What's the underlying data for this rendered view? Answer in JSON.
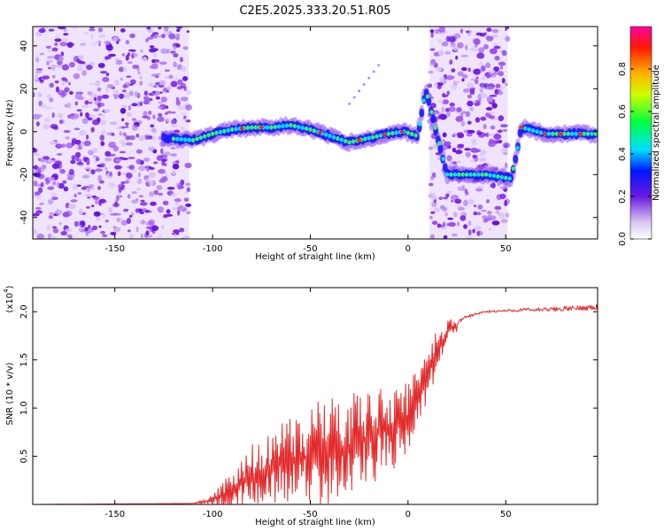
{
  "chart_data": [
    {
      "type": "heatmap",
      "title": "C2E5.2025.333.20.51.R05",
      "xlabel": "Height of straight line (km)",
      "ylabel": "Frequency (Hz)",
      "xlim": [
        -192,
        97
      ],
      "ylim": [
        -50,
        49
      ],
      "xticks": [
        "-150",
        "-100",
        "-50",
        "0",
        "50"
      ],
      "yticks": [
        "40",
        "20",
        "0",
        "-20",
        "-40"
      ],
      "colorbar": {
        "label": "Normalized spectral amplitude",
        "range": [
          0,
          1
        ],
        "ticks": [
          "0.0",
          "0.2",
          "0.4",
          "0.6",
          "0.8"
        ]
      },
      "noise_regions_km": [
        [
          -192,
          -112
        ],
        [
          11,
          51
        ]
      ],
      "spectral_ridge": {
        "height_km": [
          -125,
          -110,
          -100,
          -90,
          -80,
          -70,
          -60,
          -50,
          -40,
          -30,
          -20,
          -10,
          -2,
          5,
          9,
          20,
          40,
          53,
          58,
          70,
          85,
          97
        ],
        "frequency_hz": [
          -3,
          -4,
          -1,
          1,
          2,
          2,
          3,
          1,
          -2,
          -5,
          -3,
          -1,
          0,
          -2,
          20,
          -20,
          -20,
          -22,
          2,
          -1,
          -1,
          -1
        ]
      }
    },
    {
      "type": "line",
      "xlabel": "Height of straight line (km)",
      "ylabel": "SNR (10 * v/v)",
      "exponent_label": "(x10",
      "exponent_power": "4",
      "xlim": [
        -192,
        97
      ],
      "ylim": [
        0,
        2.25
      ],
      "xticks": [
        "-150",
        "-100",
        "-50",
        "0",
        "50"
      ],
      "yticks": [
        "0.5",
        "1.0",
        "1.5",
        "2.0"
      ],
      "series": [
        {
          "name": "SNR",
          "color": "#e32b2b",
          "x": [
            -192,
            -110,
            -100,
            -90,
            -80,
            -70,
            -60,
            -50,
            -40,
            -30,
            -20,
            -10,
            0,
            10,
            20,
            30,
            40,
            50,
            60,
            70,
            80,
            90,
            97
          ],
          "y": [
            0.0,
            0.01,
            0.05,
            0.15,
            0.3,
            0.4,
            0.45,
            0.5,
            0.55,
            0.6,
            0.7,
            0.8,
            0.9,
            1.4,
            1.8,
            1.95,
            2.0,
            2.01,
            2.02,
            2.02,
            2.03,
            2.04,
            2.05
          ],
          "noise_envelope": [
            0.0,
            0.0,
            0.04,
            0.2,
            0.3,
            0.35,
            0.4,
            0.5,
            0.5,
            0.5,
            0.45,
            0.45,
            0.35,
            0.3,
            0.1,
            0.05,
            0.04,
            0.05,
            0.06,
            0.07,
            0.08,
            0.1,
            0.12
          ]
        }
      ]
    }
  ]
}
